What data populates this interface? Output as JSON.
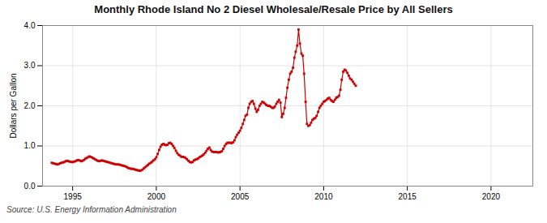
{
  "chart_data": {
    "type": "line",
    "title": "Monthly Rhode Island No 2 Diesel Wholesale/Resale Price by All Sellers",
    "ylabel": "Dollars per Gallon",
    "source": "Source: U.S. Energy Information Administration",
    "color": "#cc0000",
    "marker": "square",
    "line_style": "solid",
    "grid": true,
    "xlim": [
      1993.2,
      2022.5
    ],
    "xticks": [
      1995,
      2000,
      2005,
      2010,
      2015,
      2020
    ],
    "ylim": [
      0.0,
      4.0
    ],
    "yticks": [
      {
        "value": 0.0,
        "label": "0.0"
      },
      {
        "value": 1.0,
        "label": "1.0"
      },
      {
        "value": 2.0,
        "label": "2.0"
      },
      {
        "value": 3.0,
        "label": "3.0"
      },
      {
        "value": 4.0,
        "label": "4.0"
      }
    ],
    "x": [
      1993.75,
      1993.83,
      1993.92,
      1994.0,
      1994.08,
      1994.17,
      1994.25,
      1994.33,
      1994.42,
      1994.5,
      1994.58,
      1994.67,
      1994.75,
      1994.83,
      1994.92,
      1995.0,
      1995.08,
      1995.17,
      1995.25,
      1995.33,
      1995.42,
      1995.5,
      1995.58,
      1995.67,
      1995.75,
      1995.83,
      1995.92,
      1996.0,
      1996.08,
      1996.17,
      1996.25,
      1996.33,
      1996.42,
      1996.5,
      1996.58,
      1996.67,
      1996.75,
      1996.83,
      1996.92,
      1997.0,
      1997.08,
      1997.17,
      1997.25,
      1997.33,
      1997.42,
      1997.5,
      1997.58,
      1997.67,
      1997.75,
      1997.83,
      1997.92,
      1998.0,
      1998.08,
      1998.17,
      1998.25,
      1998.33,
      1998.42,
      1998.5,
      1998.58,
      1998.67,
      1998.75,
      1998.83,
      1998.92,
      1999.0,
      1999.08,
      1999.17,
      1999.25,
      1999.33,
      1999.42,
      1999.5,
      1999.58,
      1999.67,
      1999.75,
      1999.83,
      1999.92,
      2000.0,
      2000.08,
      2000.17,
      2000.25,
      2000.33,
      2000.42,
      2000.5,
      2000.58,
      2000.67,
      2000.75,
      2000.83,
      2000.92,
      2001.0,
      2001.08,
      2001.17,
      2001.25,
      2001.33,
      2001.42,
      2001.5,
      2001.58,
      2001.67,
      2001.75,
      2001.83,
      2001.92,
      2002.0,
      2002.08,
      2002.17,
      2002.25,
      2002.33,
      2002.42,
      2002.5,
      2002.58,
      2002.67,
      2002.75,
      2002.83,
      2002.92,
      2003.0,
      2003.08,
      2003.17,
      2003.25,
      2003.33,
      2003.42,
      2003.5,
      2003.58,
      2003.67,
      2003.75,
      2003.83,
      2003.92,
      2004.0,
      2004.08,
      2004.17,
      2004.25,
      2004.33,
      2004.42,
      2004.5,
      2004.58,
      2004.67,
      2004.75,
      2004.83,
      2004.92,
      2005.0,
      2005.08,
      2005.17,
      2005.25,
      2005.33,
      2005.42,
      2005.5,
      2005.58,
      2005.67,
      2005.75,
      2005.83,
      2005.92,
      2006.0,
      2006.08,
      2006.17,
      2006.25,
      2006.33,
      2006.42,
      2006.5,
      2006.58,
      2006.67,
      2006.75,
      2006.83,
      2006.92,
      2007.0,
      2007.08,
      2007.17,
      2007.25,
      2007.33,
      2007.42,
      2007.5,
      2007.58,
      2007.67,
      2007.75,
      2007.83,
      2007.92,
      2008.0,
      2008.08,
      2008.17,
      2008.25,
      2008.33,
      2008.42,
      2008.5,
      2008.58,
      2008.67,
      2008.75,
      2008.83,
      2008.92,
      2009.0,
      2009.08,
      2009.17,
      2009.25,
      2009.33,
      2009.42,
      2009.5,
      2009.58,
      2009.67,
      2009.75,
      2009.83,
      2009.92,
      2010.0,
      2010.08,
      2010.17,
      2010.25,
      2010.33,
      2010.42,
      2010.5,
      2010.58,
      2010.67,
      2010.75,
      2010.83,
      2010.92,
      2011.0,
      2011.08,
      2011.17,
      2011.25,
      2011.33,
      2011.42,
      2011.5,
      2011.58,
      2011.67,
      2011.75,
      2011.83,
      2011.92
    ],
    "values": [
      0.58,
      0.57,
      0.56,
      0.55,
      0.54,
      0.55,
      0.57,
      0.58,
      0.59,
      0.6,
      0.62,
      0.63,
      0.62,
      0.61,
      0.6,
      0.6,
      0.61,
      0.62,
      0.64,
      0.65,
      0.64,
      0.62,
      0.63,
      0.65,
      0.68,
      0.7,
      0.72,
      0.74,
      0.73,
      0.71,
      0.69,
      0.67,
      0.65,
      0.63,
      0.62,
      0.63,
      0.64,
      0.63,
      0.62,
      0.61,
      0.6,
      0.59,
      0.58,
      0.57,
      0.56,
      0.55,
      0.54,
      0.54,
      0.54,
      0.53,
      0.52,
      0.51,
      0.5,
      0.49,
      0.47,
      0.45,
      0.44,
      0.43,
      0.43,
      0.42,
      0.41,
      0.4,
      0.39,
      0.38,
      0.39,
      0.41,
      0.44,
      0.47,
      0.5,
      0.53,
      0.56,
      0.58,
      0.61,
      0.64,
      0.67,
      0.72,
      0.8,
      0.9,
      0.98,
      1.03,
      1.05,
      1.03,
      1.02,
      1.03,
      1.07,
      1.08,
      1.05,
      1.0,
      0.95,
      0.88,
      0.82,
      0.78,
      0.76,
      0.73,
      0.73,
      0.72,
      0.7,
      0.67,
      0.63,
      0.6,
      0.59,
      0.6,
      0.64,
      0.66,
      0.67,
      0.69,
      0.72,
      0.74,
      0.76,
      0.79,
      0.83,
      0.88,
      0.93,
      0.96,
      0.9,
      0.86,
      0.85,
      0.85,
      0.85,
      0.84,
      0.84,
      0.85,
      0.87,
      0.93,
      1.0,
      1.05,
      1.08,
      1.08,
      1.08,
      1.07,
      1.09,
      1.14,
      1.22,
      1.28,
      1.33,
      1.38,
      1.45,
      1.55,
      1.65,
      1.75,
      1.78,
      1.95,
      2.05,
      2.1,
      2.12,
      2.05,
      1.93,
      1.85,
      1.9,
      2.0,
      2.05,
      2.1,
      2.08,
      2.05,
      2.02,
      2.0,
      2.0,
      1.98,
      1.95,
      1.95,
      1.98,
      2.05,
      2.1,
      2.15,
      2.08,
      1.72,
      1.8,
      1.95,
      2.2,
      2.45,
      2.65,
      2.8,
      2.85,
      2.95,
      3.2,
      3.35,
      3.5,
      3.9,
      3.55,
      3.3,
      3.25,
      2.8,
      2.1,
      1.55,
      1.5,
      1.52,
      1.58,
      1.65,
      1.68,
      1.7,
      1.75,
      1.85,
      1.95,
      2.0,
      2.05,
      2.1,
      2.12,
      2.15,
      2.18,
      2.2,
      2.15,
      2.12,
      2.1,
      2.15,
      2.2,
      2.22,
      2.25,
      2.4,
      2.65,
      2.85,
      2.9,
      2.88,
      2.82,
      2.75,
      2.68,
      2.65,
      2.6,
      2.55,
      2.5
    ]
  }
}
